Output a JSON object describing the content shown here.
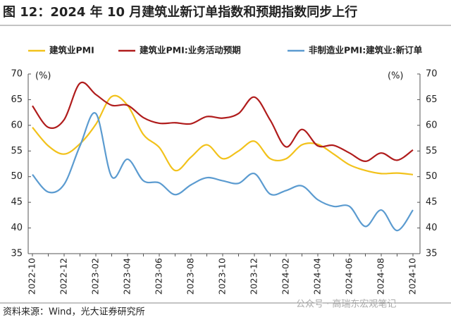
{
  "chart_data": {
    "type": "line",
    "title": "图 12：2024 年 10 月建筑业新订单指数和预期指数同步上行",
    "y_unit": "(%)",
    "y2_unit": "(%)",
    "source": "资料来源：Wind，光大证券研究所",
    "watermark": "公众号 · 高瑞东宏观笔记",
    "categories": [
      "2022-10",
      null,
      "2022-12",
      null,
      "2023-02",
      null,
      "2023-04",
      null,
      "2023-06",
      null,
      "2023-08",
      null,
      "2023-10",
      null,
      "2023-12",
      null,
      "2024-02",
      null,
      "2024-04",
      null,
      "2024-06",
      null,
      "2024-08",
      null,
      "2024-10"
    ],
    "series": [
      {
        "name": "建筑业PMI",
        "color": "#f2c21b",
        "values": [
          59.6,
          56.0,
          54.4,
          56.4,
          60.2,
          65.6,
          63.9,
          58.2,
          55.7,
          51.2,
          53.8,
          56.2,
          53.5,
          55.0,
          56.9,
          53.5,
          53.5,
          56.2,
          56.3,
          54.4,
          52.3,
          51.2,
          50.6,
          50.7,
          50.4
        ]
      },
      {
        "name": "建筑业PMI:业务活动预期",
        "color": "#b01c1c",
        "values": [
          63.8,
          59.6,
          61.1,
          68.2,
          66.0,
          63.9,
          63.9,
          61.5,
          60.4,
          60.5,
          60.3,
          61.7,
          61.4,
          62.3,
          65.5,
          61.0,
          55.8,
          59.2,
          56.0,
          56.1,
          54.6,
          53.0,
          54.6,
          53.2,
          55.2
        ]
      },
      {
        "name": "非制造业PMI:建筑业:新订单",
        "color": "#5b9bd0",
        "values": [
          50.4,
          47.0,
          48.5,
          56.0,
          62.3,
          50.0,
          53.4,
          49.2,
          48.8,
          46.5,
          48.4,
          49.8,
          49.2,
          48.7,
          50.6,
          46.6,
          47.3,
          48.2,
          45.5,
          44.2,
          44.2,
          40.3,
          43.5,
          39.5,
          43.5
        ]
      }
    ],
    "ylim": [
      35,
      70
    ],
    "yticks": [
      35,
      40,
      45,
      50,
      55,
      60,
      65,
      70
    ],
    "y2lim": [
      35,
      70
    ],
    "y2ticks": [
      35,
      40,
      45,
      50,
      55,
      60,
      65,
      70
    ]
  }
}
